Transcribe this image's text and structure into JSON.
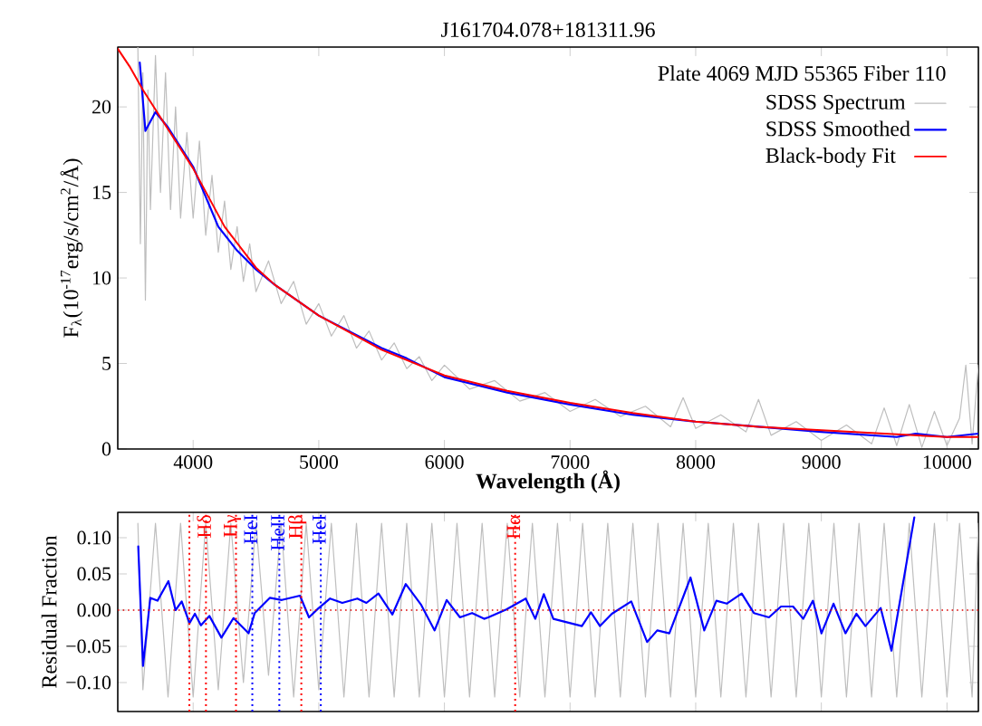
{
  "chart_data": [
    {
      "type": "line",
      "title": "J161704.078+181311.96",
      "xlabel": "Wavelength (Å)",
      "ylabel": "F$_{λ}$(10$^{-17}$erg/s/cm$^{2}$/Å)",
      "annotations": [
        "Plate 4069 MJD 55365 Fiber 110"
      ],
      "xlim": [
        3400,
        10250
      ],
      "ylim": [
        0,
        23.5
      ],
      "xticks": [
        4000,
        5000,
        6000,
        7000,
        8000,
        9000,
        10000
      ],
      "yticks": [
        0,
        5,
        10,
        15,
        20
      ],
      "legend": "top right",
      "series": [
        {
          "name": "SDSS Spectrum",
          "color": "#bebebe",
          "x": [
            3560,
            3580,
            3600,
            3620,
            3640,
            3660,
            3700,
            3740,
            3780,
            3820,
            3860,
            3900,
            3950,
            4000,
            4050,
            4100,
            4150,
            4200,
            4250,
            4300,
            4350,
            4400,
            4450,
            4500,
            4600,
            4700,
            4800,
            4900,
            5000,
            5100,
            5200,
            5300,
            5400,
            5500,
            5600,
            5700,
            5800,
            5900,
            6000,
            6200,
            6400,
            6600,
            6800,
            7000,
            7200,
            7400,
            7600,
            7800,
            7900,
            8000,
            8200,
            8400,
            8500,
            8600,
            8800,
            9000,
            9200,
            9400,
            9500,
            9600,
            9700,
            9800,
            9900,
            10000,
            10100,
            10150,
            10200,
            10250
          ],
          "values": [
            23.5,
            12,
            22,
            8.7,
            21,
            14,
            23,
            15,
            22,
            14,
            20,
            13.5,
            18.5,
            13.5,
            18,
            12.5,
            16,
            11.5,
            14.5,
            10.5,
            13,
            9.8,
            12,
            9.2,
            11,
            8.5,
            9.8,
            7.3,
            8.5,
            6.6,
            7.8,
            5.9,
            6.9,
            5.2,
            6.2,
            4.7,
            5.4,
            4.0,
            4.9,
            3.5,
            4.0,
            2.8,
            3.3,
            2.2,
            2.9,
            1.9,
            2.5,
            1.3,
            3.0,
            1.2,
            2.0,
            1.0,
            2.9,
            0.8,
            1.6,
            0.5,
            1.4,
            0.3,
            2.4,
            0.2,
            2.6,
            0.1,
            2.2,
            0.2,
            1.8,
            4.9,
            0.3,
            4.9
          ]
        },
        {
          "name": "SDSS Smoothed",
          "color": "#0000ff",
          "x": [
            3575,
            3620,
            3700,
            3800,
            4000,
            4200,
            4350,
            4500,
            4650,
            5000,
            5500,
            5700,
            6000,
            6500,
            7000,
            7500,
            8000,
            8500,
            9000,
            9600,
            9750,
            10000,
            10250
          ],
          "values": [
            22.6,
            18.6,
            19.7,
            18.8,
            16.5,
            13.0,
            11.6,
            10.5,
            9.6,
            7.8,
            5.9,
            5.3,
            4.2,
            3.3,
            2.6,
            2.0,
            1.6,
            1.3,
            1.0,
            0.7,
            0.9,
            0.7,
            0.9
          ]
        },
        {
          "name": "Black-body Fit",
          "color": "#ff0000",
          "x": [
            3400,
            3500,
            3600,
            3800,
            4000,
            4250,
            4500,
            4650,
            5000,
            5500,
            6000,
            6500,
            7000,
            7500,
            8000,
            8500,
            9000,
            9500,
            10000,
            10250
          ],
          "values": [
            23.4,
            22.3,
            21.0,
            18.7,
            16.4,
            13.0,
            10.6,
            9.6,
            7.8,
            5.8,
            4.3,
            3.4,
            2.7,
            2.1,
            1.6,
            1.3,
            1.1,
            0.9,
            0.7,
            0.7
          ]
        }
      ]
    },
    {
      "type": "line",
      "ylabel": "Residual Fraction",
      "xlim": [
        3400,
        10250
      ],
      "xticks": [
        4000,
        5000,
        6000,
        7000,
        8000,
        9000,
        10000
      ],
      "ylim": [
        -0.14,
        0.135
      ],
      "yticks": [
        {
          "value": -0.1,
          "label": "−0.10"
        },
        {
          "value": -0.05,
          "label": "−0.05"
        },
        {
          "value": 0,
          "label": "0.00"
        },
        {
          "value": 0.05,
          "label": "0.05"
        },
        {
          "value": 0.1,
          "label": "0.10"
        }
      ],
      "tick_labels": "y",
      "ref_lines": [
        {
          "axis": "y",
          "value": 0,
          "label": null,
          "color": "#dd0000",
          "line_style": "dotted"
        },
        {
          "axis": "x",
          "value": 3970,
          "label": null,
          "color": "#ff0000",
          "line_style": "dotted"
        },
        {
          "axis": "x",
          "value": 4102,
          "label": "Hδ",
          "color": "#ff0000",
          "line_style": "dotted"
        },
        {
          "axis": "x",
          "value": 4341,
          "label": "Hγ",
          "color": "#ff0000",
          "line_style": "dotted"
        },
        {
          "axis": "x",
          "value": 4471,
          "label": "HeI",
          "color": "#0000ff",
          "line_style": "dotted"
        },
        {
          "axis": "x",
          "value": 4686,
          "label": "HeII",
          "color": "#0000ff",
          "line_style": "dotted"
        },
        {
          "axis": "x",
          "value": 4861,
          "label": "Hβ",
          "color": "#ff0000",
          "line_style": "dotted"
        },
        {
          "axis": "x",
          "value": 5016,
          "label": "HeI",
          "color": "#0000ff",
          "line_style": "dotted"
        },
        {
          "axis": "x",
          "value": 6563,
          "label": "Hα",
          "color": "#ff0000",
          "line_style": "dotted"
        }
      ],
      "series": [
        {
          "color": "#bebebe",
          "x": [
            3560,
            3600,
            3700,
            3800,
            3900,
            4000,
            4100,
            4200,
            4300,
            4400,
            4500,
            4600,
            4700,
            4800,
            4900,
            5000,
            5100,
            5200,
            5300,
            5400,
            5500,
            5600,
            5700,
            5800,
            5900,
            6000,
            6100,
            6200,
            6300,
            6400,
            6500,
            6600,
            6700,
            6800,
            6900,
            7000,
            7100,
            7200,
            7300,
            7400,
            7500,
            7600,
            7700,
            7800,
            7900,
            8000,
            8100,
            8200,
            8300,
            8400,
            8500,
            8600,
            8700,
            8800,
            8900,
            9000,
            9100,
            9200,
            9300,
            9400,
            9500,
            9600,
            9700,
            9800,
            9900,
            10000,
            10100,
            10200,
            10250
          ],
          "values": [
            0.12,
            -0.11,
            0.12,
            -0.12,
            0.12,
            -0.12,
            0.12,
            -0.11,
            0.12,
            -0.1,
            0.12,
            -0.09,
            0.12,
            -0.12,
            0.12,
            -0.11,
            0.12,
            -0.12,
            0.12,
            -0.12,
            0.12,
            -0.12,
            0.12,
            -0.12,
            0.12,
            -0.12,
            0.12,
            -0.12,
            0.12,
            -0.12,
            0.12,
            -0.12,
            0.12,
            -0.12,
            0.12,
            -0.12,
            0.12,
            -0.12,
            0.12,
            -0.12,
            0.12,
            -0.12,
            0.12,
            -0.12,
            0.12,
            -0.12,
            0.12,
            -0.12,
            0.12,
            -0.12,
            0.12,
            -0.12,
            0.12,
            -0.12,
            0.12,
            -0.12,
            0.12,
            -0.12,
            0.12,
            -0.12,
            0.12,
            -0.12,
            0.12,
            -0.12,
            0.12,
            -0.12,
            0.12,
            -0.12,
            0.12
          ]
        },
        {
          "color": "#0000ff",
          "x": [
            3563,
            3601,
            3659,
            3716,
            3803,
            3860,
            3909,
            3971,
            4014,
            4062,
            4129,
            4225,
            4321,
            4441,
            4490,
            4610,
            4706,
            4850,
            4922,
            4994,
            5090,
            5187,
            5307,
            5379,
            5475,
            5586,
            5692,
            5812,
            5922,
            6018,
            6124,
            6220,
            6316,
            6349,
            6493,
            6647,
            6723,
            6791,
            6867,
            7094,
            7166,
            7238,
            7333,
            7487,
            7613,
            7694,
            7790,
            7959,
            8068,
            8165,
            8247,
            8366,
            8463,
            8583,
            8679,
            8775,
            8856,
            8933,
            9001,
            9097,
            9192,
            9279,
            9351,
            9472,
            9558,
            9740
          ],
          "values": [
            0.088,
            -0.077,
            0.017,
            0.013,
            0.04,
            0,
            0.012,
            -0.018,
            -0.005,
            -0.021,
            -0.008,
            -0.038,
            -0.011,
            -0.032,
            -0.004,
            0.017,
            0.014,
            0.02,
            -0.01,
            0.002,
            0.016,
            0.01,
            0.016,
            0.01,
            0.023,
            -0.006,
            0.036,
            0.008,
            -0.028,
            0.014,
            -0.01,
            -0.004,
            -0.012,
            -0.01,
            0.001,
            0.016,
            -0.012,
            0.022,
            -0.012,
            -0.022,
            -0.003,
            -0.022,
            -0.005,
            0.012,
            -0.044,
            -0.028,
            -0.032,
            0.045,
            -0.028,
            0.013,
            0.009,
            0.023,
            -0.004,
            -0.01,
            0.005,
            0.005,
            -0.012,
            0.013,
            -0.032,
            0.009,
            -0.032,
            -0.005,
            -0.022,
            0.003,
            -0.056,
            0.128
          ]
        }
      ]
    }
  ]
}
